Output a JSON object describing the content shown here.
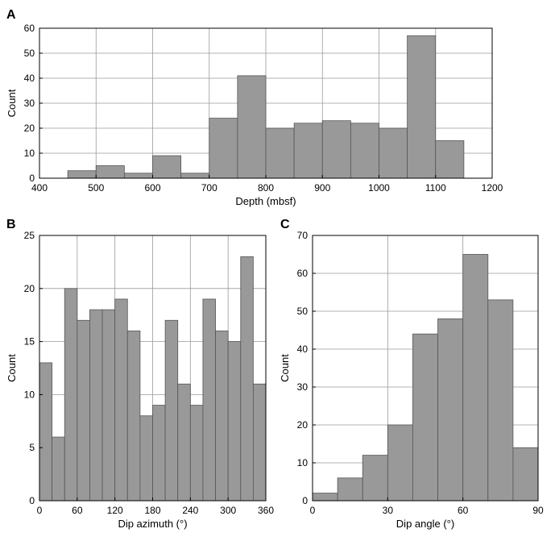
{
  "chart_data": [
    {
      "panel_label": "A",
      "type": "bar",
      "xlabel": "Depth (mbsf)",
      "ylabel": "Count",
      "xlim": [
        400,
        1200
      ],
      "ylim": [
        0,
        60
      ],
      "xticks": [
        400,
        500,
        600,
        700,
        800,
        900,
        1000,
        1100,
        1200
      ],
      "yticks": [
        0,
        10,
        20,
        30,
        40,
        50,
        60
      ],
      "bin_width": 50,
      "bins_start": [
        450,
        500,
        550,
        600,
        650,
        700,
        750,
        800,
        850,
        900,
        950,
        1000,
        1050,
        1100
      ],
      "values": [
        3,
        5,
        2,
        9,
        2,
        24,
        41,
        20,
        22,
        23,
        22,
        20,
        57,
        15
      ],
      "grid": true,
      "bar_color": "#999999"
    },
    {
      "panel_label": "B",
      "type": "bar",
      "xlabel": "Dip azimuth (°)",
      "ylabel": "Count",
      "xlim": [
        0,
        360
      ],
      "ylim": [
        0,
        25
      ],
      "xticks": [
        0,
        60,
        120,
        180,
        240,
        300,
        360
      ],
      "yticks": [
        0,
        5,
        10,
        15,
        20,
        25
      ],
      "bin_width": 20,
      "bins_start": [
        0,
        20,
        40,
        60,
        80,
        100,
        120,
        140,
        160,
        180,
        200,
        220,
        240,
        260,
        280,
        300,
        320,
        340
      ],
      "values": [
        13,
        6,
        20,
        17,
        18,
        18,
        19,
        16,
        8,
        9,
        17,
        11,
        9,
        19,
        16,
        15,
        23,
        11
      ],
      "grid": true,
      "bar_color": "#999999"
    },
    {
      "panel_label": "C",
      "type": "bar",
      "xlabel": "Dip angle (°)",
      "ylabel": "Count",
      "xlim": [
        0,
        90
      ],
      "ylim": [
        0,
        70
      ],
      "xticks": [
        0,
        30,
        60,
        90
      ],
      "yticks": [
        0,
        10,
        20,
        30,
        40,
        50,
        60,
        70
      ],
      "bin_width": 10,
      "bins_start": [
        0,
        10,
        20,
        30,
        40,
        50,
        60,
        70,
        80
      ],
      "values": [
        2,
        6,
        12,
        20,
        44,
        48,
        65,
        53,
        14
      ],
      "grid": true,
      "bar_color": "#999999"
    }
  ]
}
